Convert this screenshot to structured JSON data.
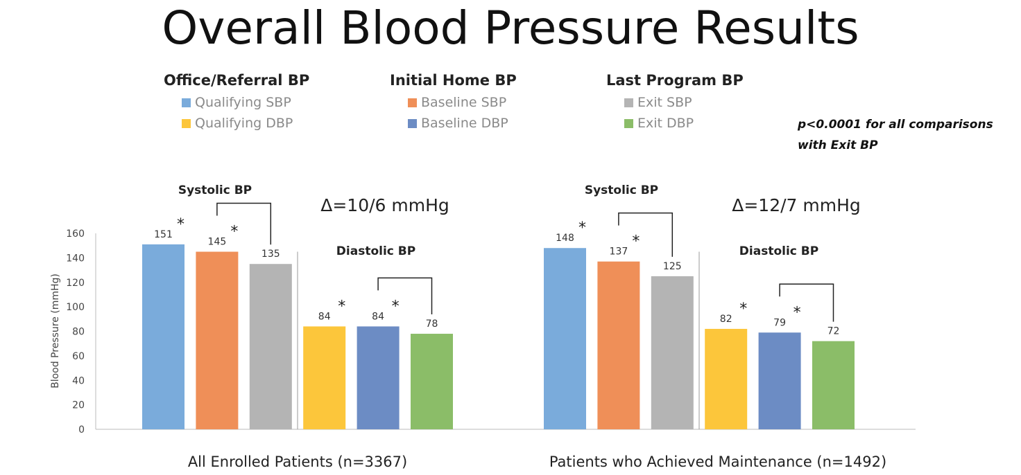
{
  "title": "Overall Blood Pressure Results",
  "legend_groups": [
    {
      "title": "Office/Referral BP",
      "items": [
        {
          "label": "Qualifying SBP",
          "color": "#7aabdb"
        },
        {
          "label": "Qualifying DBP",
          "color": "#fcc63b"
        }
      ]
    },
    {
      "title": "Initial Home BP",
      "items": [
        {
          "label": "Baseline SBP",
          "color": "#ef8f58"
        },
        {
          "label": "Baseline DBP",
          "color": "#6c8cc4"
        }
      ]
    },
    {
      "title": "Last Program BP",
      "items": [
        {
          "label": "Exit SBP",
          "color": "#b4b4b4"
        },
        {
          "label": "Exit DBP",
          "color": "#8bbd68"
        }
      ]
    }
  ],
  "p_note": "p<0.0001 for all comparisons with Exit BP",
  "chart_data": {
    "type": "bar",
    "ylabel": "Blood Pressure (mmHg)",
    "ylim": [
      0,
      160
    ],
    "yticks": [
      0,
      20,
      40,
      60,
      80,
      100,
      120,
      140,
      160
    ],
    "groups": [
      {
        "label": "All Enrolled Patients (n=3367)",
        "delta": "Δ=10/6  mmHg",
        "systolic_label": "Systolic BP",
        "diastolic_label": "Diastolic BP",
        "bars": [
          {
            "series": "Qualifying SBP",
            "value": 151,
            "color": "#7aabdb",
            "star": true
          },
          {
            "series": "Baseline SBP",
            "value": 145,
            "color": "#ef8f58",
            "star": true
          },
          {
            "series": "Exit SBP",
            "value": 135,
            "color": "#b4b4b4",
            "star": false
          },
          {
            "series": "Qualifying DBP",
            "value": 84,
            "color": "#fcc63b",
            "star": true
          },
          {
            "series": "Baseline DBP",
            "value": 84,
            "color": "#6c8cc4",
            "star": true
          },
          {
            "series": "Exit DBP",
            "value": 78,
            "color": "#8bbd68",
            "star": false
          }
        ]
      },
      {
        "label": "Patients who Achieved Maintenance (n=1492)",
        "delta": "Δ=12/7  mmHg",
        "systolic_label": "Systolic BP",
        "diastolic_label": "Diastolic BP",
        "bars": [
          {
            "series": "Qualifying SBP",
            "value": 148,
            "color": "#7aabdb",
            "star": true
          },
          {
            "series": "Baseline SBP",
            "value": 137,
            "color": "#ef8f58",
            "star": true
          },
          {
            "series": "Exit SBP",
            "value": 125,
            "color": "#b4b4b4",
            "star": false
          },
          {
            "series": "Qualifying DBP",
            "value": 82,
            "color": "#fcc63b",
            "star": true
          },
          {
            "series": "Baseline DBP",
            "value": 79,
            "color": "#6c8cc4",
            "star": true
          },
          {
            "series": "Exit DBP",
            "value": 72,
            "color": "#8bbd68",
            "star": false
          }
        ]
      }
    ],
    "star_symbol": "*"
  }
}
